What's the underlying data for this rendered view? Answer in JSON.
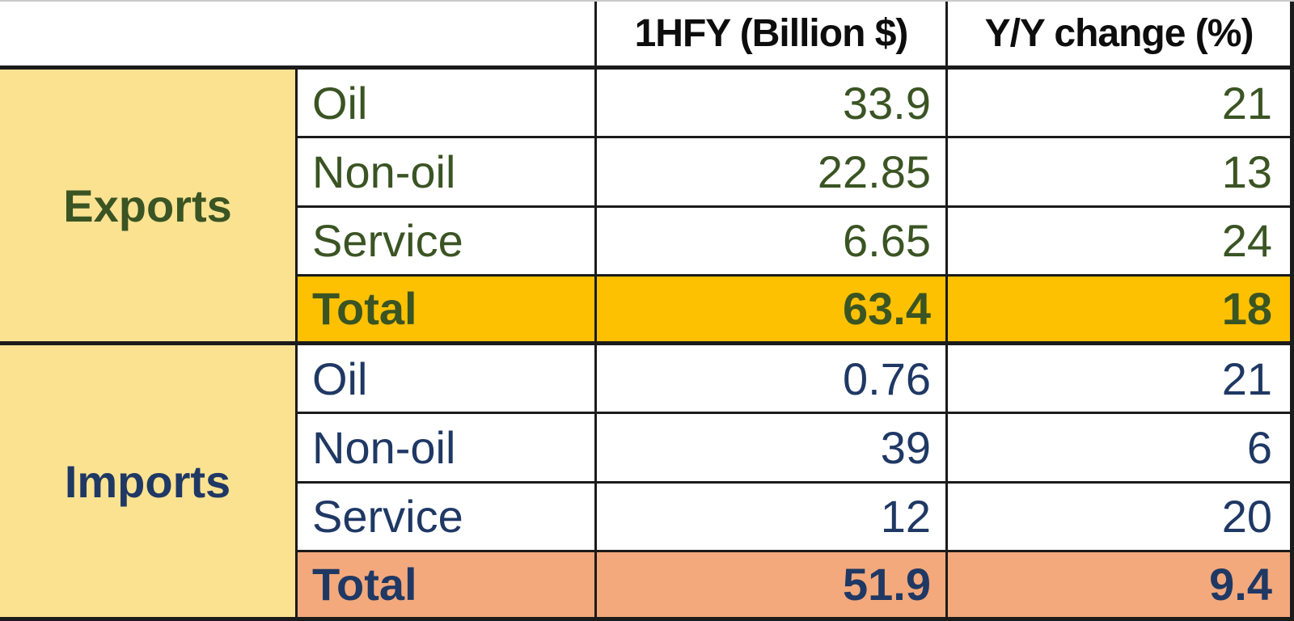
{
  "chart_data": {
    "type": "table",
    "columns": [
      "",
      "",
      "1HFY (Billion $)",
      "Y/Y change (%)"
    ],
    "row_groups": [
      {
        "group": "Exports",
        "rows": [
          [
            "Oil",
            "33.9",
            "21"
          ],
          [
            "Non-oil",
            "22.85",
            "13"
          ],
          [
            "Service",
            "6.65",
            "24"
          ],
          [
            "Total",
            "63.4",
            "18"
          ]
        ]
      },
      {
        "group": "Imports",
        "rows": [
          [
            "Oil",
            "0.76",
            "21"
          ],
          [
            "Non-oil",
            "39",
            "6"
          ],
          [
            "Service",
            "12",
            "20"
          ],
          [
            "Total",
            "51.9",
            "9.4"
          ]
        ]
      }
    ],
    "layout_hints": {
      "total_rows_highlighted": true,
      "group_column_merged": true
    }
  },
  "colors": {
    "group_cell_fill": "#fae291",
    "exports_total_fill": "#fdc101",
    "imports_total_fill": "#f3a97c",
    "exports_text": "#3a5423",
    "imports_text": "#1f3864",
    "header_text": "#0d0d0d",
    "grid_border": "#1b1b1b"
  }
}
